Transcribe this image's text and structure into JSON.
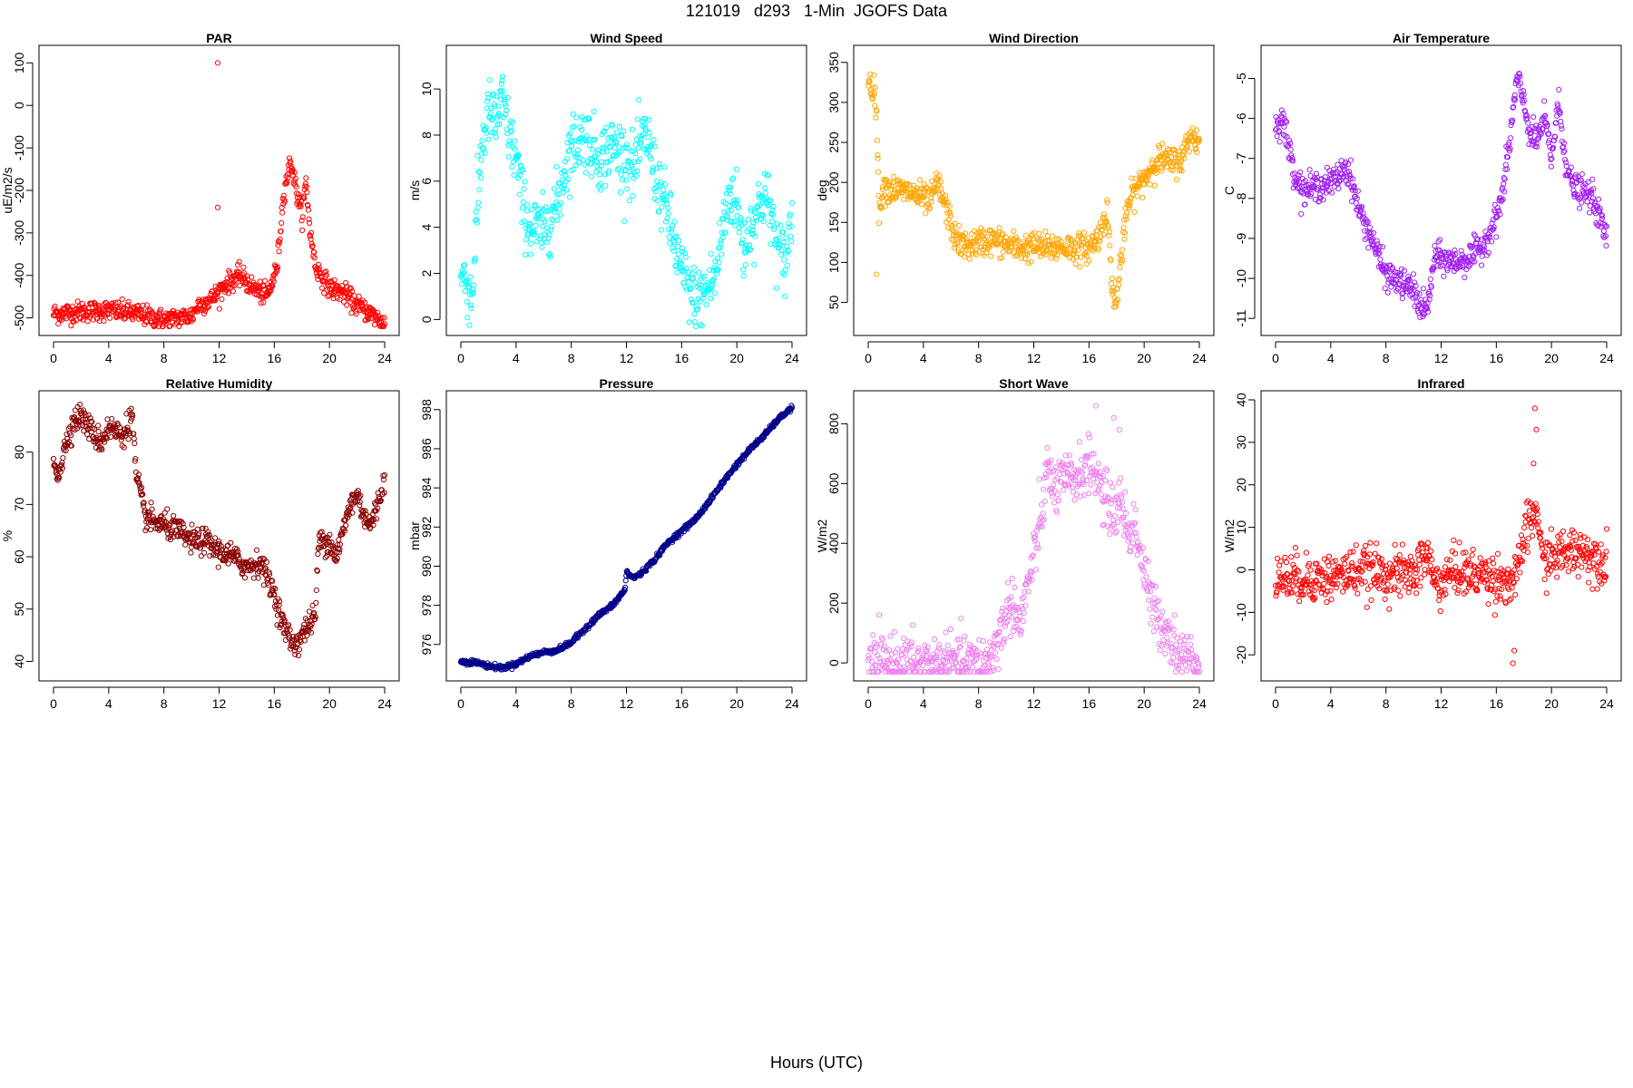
{
  "page": {
    "title": "121019   d293   1-Min  JGOFS Data",
    "xlabel": "Hours (UTC)"
  },
  "chart_data": [
    {
      "id": "par",
      "type": "scatter",
      "title": "PAR",
      "ylabel": "uE/m2/s",
      "color": "#ff0000",
      "xlim": [
        0,
        24
      ],
      "ylim": [
        -520,
        120
      ],
      "xticks": [
        0,
        4,
        8,
        12,
        16,
        20,
        24
      ],
      "yticks": [
        -500,
        -400,
        -300,
        -200,
        -100,
        0,
        100
      ],
      "keypoints": [
        [
          0,
          -490
        ],
        [
          2,
          -485
        ],
        [
          4,
          -482
        ],
        [
          6,
          -490
        ],
        [
          8,
          -505
        ],
        [
          10,
          -495
        ],
        [
          10.5,
          -470
        ],
        [
          11.5,
          -455
        ],
        [
          12.5,
          -420
        ],
        [
          13.5,
          -400
        ],
        [
          14.5,
          -430
        ],
        [
          15.5,
          -450
        ],
        [
          16.2,
          -380
        ],
        [
          16.7,
          -200
        ],
        [
          17.2,
          -130
        ],
        [
          17.6,
          -200
        ],
        [
          18,
          -260
        ],
        [
          18.3,
          -180
        ],
        [
          18.6,
          -300
        ],
        [
          19,
          -380
        ],
        [
          20,
          -430
        ],
        [
          21,
          -440
        ],
        [
          22,
          -470
        ],
        [
          23,
          -490
        ],
        [
          24,
          -515
        ]
      ],
      "noise": 12,
      "outliers": [
        [
          11.9,
          100
        ],
        [
          11.9,
          -240
        ]
      ]
    },
    {
      "id": "wind-speed",
      "type": "scatter",
      "title": "Wind Speed",
      "ylabel": "m/s",
      "color": "#00ffff",
      "xlim": [
        0,
        24
      ],
      "ylim": [
        -0.3,
        11.5
      ],
      "xticks": [
        0,
        4,
        8,
        12,
        16,
        20,
        24
      ],
      "yticks": [
        0,
        2,
        4,
        6,
        8,
        10
      ],
      "keypoints": [
        [
          0,
          2
        ],
        [
          0.5,
          1.5
        ],
        [
          0.8,
          0.8
        ],
        [
          1,
          3
        ],
        [
          1.5,
          7.5
        ],
        [
          2,
          9
        ],
        [
          2.5,
          8.5
        ],
        [
          3,
          9.5
        ],
        [
          3.5,
          8
        ],
        [
          4,
          7
        ],
        [
          4.5,
          5
        ],
        [
          5,
          4
        ],
        [
          6,
          3.8
        ],
        [
          6.5,
          4.5
        ],
        [
          7,
          5
        ],
        [
          7.5,
          6.5
        ],
        [
          8,
          7.5
        ],
        [
          9,
          8
        ],
        [
          10,
          7
        ],
        [
          11,
          7.5
        ],
        [
          12,
          7
        ],
        [
          12.5,
          6.5
        ],
        [
          13,
          7.5
        ],
        [
          13.5,
          8
        ],
        [
          14,
          6.5
        ],
        [
          15,
          4.5
        ],
        [
          16,
          2
        ],
        [
          17,
          0.8
        ],
        [
          17.5,
          1
        ],
        [
          18,
          1.5
        ],
        [
          18.5,
          2
        ],
        [
          19,
          4
        ],
        [
          19.5,
          5.5
        ],
        [
          20,
          5
        ],
        [
          20.5,
          3
        ],
        [
          21,
          4
        ],
        [
          22,
          5.5
        ],
        [
          22.5,
          4.5
        ],
        [
          23,
          3
        ],
        [
          23.5,
          2.5
        ],
        [
          24,
          4.5
        ]
      ],
      "noise": 0.7,
      "outliers": []
    },
    {
      "id": "wind-direction",
      "type": "scatter",
      "title": "Wind Direction",
      "ylabel": "deg",
      "color": "#ffa500",
      "xlim": [
        0,
        24
      ],
      "ylim": [
        20,
        360
      ],
      "xticks": [
        0,
        4,
        8,
        12,
        16,
        20,
        24
      ],
      "yticks": [
        50,
        100,
        150,
        200,
        250,
        300,
        350
      ],
      "keypoints": [
        [
          0,
          330
        ],
        [
          0.3,
          320
        ],
        [
          0.6,
          300
        ],
        [
          0.8,
          150
        ],
        [
          1,
          195
        ],
        [
          2,
          190
        ],
        [
          3,
          188
        ],
        [
          4,
          180
        ],
        [
          4.5,
          175
        ],
        [
          5,
          200
        ],
        [
          5.3,
          185
        ],
        [
          5.8,
          160
        ],
        [
          6.3,
          130
        ],
        [
          7,
          120
        ],
        [
          8,
          125
        ],
        [
          9,
          128
        ],
        [
          10,
          122
        ],
        [
          11,
          118
        ],
        [
          12,
          120
        ],
        [
          13,
          118
        ],
        [
          14,
          120
        ],
        [
          15,
          118
        ],
        [
          16,
          118
        ],
        [
          16.8,
          135
        ],
        [
          17.3,
          170
        ],
        [
          17.6,
          90
        ],
        [
          17.9,
          40
        ],
        [
          18.3,
          100
        ],
        [
          18.8,
          170
        ],
        [
          19.3,
          190
        ],
        [
          20,
          205
        ],
        [
          20.6,
          220
        ],
        [
          21,
          230
        ],
        [
          22,
          225
        ],
        [
          22.8,
          230
        ],
        [
          23.3,
          260
        ],
        [
          24,
          250
        ]
      ],
      "noise": 9,
      "outliers": [
        [
          0.6,
          85
        ],
        [
          0.7,
          230
        ]
      ]
    },
    {
      "id": "air-temperature",
      "type": "scatter",
      "title": "Air Temperature",
      "ylabel": "C",
      "color": "#a020f0",
      "xlim": [
        0,
        24
      ],
      "ylim": [
        -11.2,
        -4.4
      ],
      "xticks": [
        0,
        4,
        8,
        12,
        16,
        20,
        24
      ],
      "yticks": [
        -11,
        -10,
        -9,
        -8,
        -7,
        -6,
        -5
      ],
      "keypoints": [
        [
          0,
          -6.2
        ],
        [
          0.5,
          -6
        ],
        [
          1,
          -6.8
        ],
        [
          1.5,
          -7.5
        ],
        [
          2,
          -7.8
        ],
        [
          3,
          -7.7
        ],
        [
          4,
          -7.6
        ],
        [
          4.5,
          -7.5
        ],
        [
          5,
          -7.2
        ],
        [
          5.5,
          -7.5
        ],
        [
          5.8,
          -8
        ],
        [
          6.3,
          -8.5
        ],
        [
          7,
          -9
        ],
        [
          7.5,
          -9.5
        ],
        [
          8,
          -9.9
        ],
        [
          9,
          -10.1
        ],
        [
          10,
          -10.3
        ],
        [
          10.5,
          -10.7
        ],
        [
          11,
          -10.8
        ],
        [
          11.5,
          -9.5
        ],
        [
          12,
          -9.5
        ],
        [
          13,
          -9.6
        ],
        [
          14,
          -9.5
        ],
        [
          15,
          -9.2
        ],
        [
          16,
          -8.5
        ],
        [
          16.5,
          -7.8
        ],
        [
          17,
          -6.5
        ],
        [
          17.5,
          -5
        ],
        [
          18,
          -5.6
        ],
        [
          18.5,
          -6.5
        ],
        [
          19,
          -6.5
        ],
        [
          19.5,
          -6
        ],
        [
          20,
          -7
        ],
        [
          20.5,
          -5.6
        ],
        [
          21,
          -7
        ],
        [
          21.5,
          -7.7
        ],
        [
          22,
          -7.8
        ],
        [
          23,
          -8
        ],
        [
          23.5,
          -8.5
        ],
        [
          24,
          -9
        ]
      ],
      "noise": 0.18,
      "outliers": []
    },
    {
      "id": "relative-humidity",
      "type": "scatter",
      "title": "Relative Humidity",
      "ylabel": "%",
      "color": "#8b0000",
      "xlim": [
        0,
        24
      ],
      "ylim": [
        38,
        90
      ],
      "xticks": [
        0,
        4,
        8,
        12,
        16,
        20,
        24
      ],
      "yticks": [
        40,
        50,
        60,
        70,
        80
      ],
      "keypoints": [
        [
          0,
          78
        ],
        [
          0.3,
          76
        ],
        [
          0.6,
          78
        ],
        [
          1,
          83
        ],
        [
          1.5,
          86
        ],
        [
          2,
          87
        ],
        [
          2.5,
          85
        ],
        [
          3,
          83
        ],
        [
          3.5,
          82
        ],
        [
          4,
          85
        ],
        [
          4.5,
          84
        ],
        [
          5,
          83
        ],
        [
          5.5,
          86
        ],
        [
          5.7,
          87
        ],
        [
          6,
          75
        ],
        [
          6.3,
          72
        ],
        [
          6.6,
          68
        ],
        [
          7,
          67
        ],
        [
          8,
          66
        ],
        [
          9,
          65
        ],
        [
          10,
          63
        ],
        [
          11,
          63
        ],
        [
          12,
          61
        ],
        [
          13,
          60
        ],
        [
          14,
          58
        ],
        [
          15,
          59
        ],
        [
          15.5,
          56
        ],
        [
          16,
          53
        ],
        [
          16.5,
          48
        ],
        [
          17,
          45
        ],
        [
          17.5,
          43
        ],
        [
          18,
          45
        ],
        [
          18.5,
          47
        ],
        [
          19,
          49
        ],
        [
          19.2,
          63
        ],
        [
          20,
          63
        ],
        [
          20.5,
          60
        ],
        [
          21,
          65
        ],
        [
          21.5,
          70
        ],
        [
          22,
          72
        ],
        [
          22.5,
          68
        ],
        [
          23,
          66
        ],
        [
          23.5,
          70
        ],
        [
          24,
          75
        ]
      ],
      "noise": 1.2,
      "outliers": []
    },
    {
      "id": "pressure",
      "type": "scatter",
      "title": "Pressure",
      "ylabel": "mbar",
      "color": "#00008b",
      "xlim": [
        0,
        24
      ],
      "ylim": [
        974.6,
        988.5
      ],
      "xticks": [
        0,
        4,
        8,
        12,
        16,
        20,
        24
      ],
      "yticks": [
        976,
        978,
        980,
        982,
        984,
        986,
        988
      ],
      "keypoints": [
        [
          0,
          975.1
        ],
        [
          1,
          975.1
        ],
        [
          2,
          974.9
        ],
        [
          3,
          974.8
        ],
        [
          4,
          975
        ],
        [
          5,
          975.4
        ],
        [
          6,
          975.6
        ],
        [
          7,
          975.7
        ],
        [
          8,
          976.1
        ],
        [
          9,
          976.8
        ],
        [
          10,
          977.5
        ],
        [
          11,
          978
        ],
        [
          11.9,
          978.8
        ],
        [
          12,
          979.7
        ],
        [
          12.5,
          979.4
        ],
        [
          13,
          979.6
        ],
        [
          14,
          980.3
        ],
        [
          15,
          981.2
        ],
        [
          16,
          981.8
        ],
        [
          17,
          982.4
        ],
        [
          18,
          983.3
        ],
        [
          19,
          984.3
        ],
        [
          20,
          985.2
        ],
        [
          21,
          986
        ],
        [
          22,
          986.7
        ],
        [
          23,
          987.5
        ],
        [
          24,
          988.1
        ]
      ],
      "noise": 0.06,
      "outliers": []
    },
    {
      "id": "short-wave",
      "type": "scatter",
      "title": "Short Wave",
      "ylabel": "W/m2",
      "color": "#ee82ee",
      "xlim": [
        0,
        24
      ],
      "ylim": [
        -30,
        880
      ],
      "xticks": [
        0,
        4,
        8,
        12,
        16,
        20,
        24
      ],
      "yticks": [
        0,
        200,
        400,
        600,
        800
      ],
      "keypoints": [
        [
          0,
          0
        ],
        [
          8,
          0
        ],
        [
          8.6,
          5
        ],
        [
          9,
          30
        ],
        [
          9.5,
          90
        ],
        [
          10,
          160
        ],
        [
          10.5,
          210
        ],
        [
          11,
          120
        ],
        [
          11.5,
          250
        ],
        [
          12,
          350
        ],
        [
          12.5,
          480
        ],
        [
          13,
          650
        ],
        [
          13.5,
          580
        ],
        [
          14,
          600
        ],
        [
          15,
          620
        ],
        [
          16,
          660
        ],
        [
          16.5,
          640
        ],
        [
          17,
          560
        ],
        [
          17.5,
          520
        ],
        [
          18,
          500
        ],
        [
          18.3,
          560
        ],
        [
          18.8,
          420
        ],
        [
          19.3,
          470
        ],
        [
          20,
          300
        ],
        [
          20.5,
          200
        ],
        [
          21,
          150
        ],
        [
          21.5,
          120
        ],
        [
          22,
          80
        ],
        [
          22.5,
          30
        ],
        [
          23,
          20
        ],
        [
          24,
          0
        ]
      ],
      "noise": 45,
      "outliers": [
        [
          16.5,
          860
        ],
        [
          17.8,
          820
        ],
        [
          18.2,
          780
        ]
      ]
    },
    {
      "id": "infrared",
      "type": "scatter",
      "title": "Infrared",
      "ylabel": "W/m2",
      "color": "#ff0000",
      "xlim": [
        0,
        24
      ],
      "ylim": [
        -24,
        40
      ],
      "xticks": [
        0,
        4,
        8,
        12,
        16,
        20,
        24
      ],
      "yticks": [
        -20,
        -10,
        0,
        10,
        20,
        30,
        40
      ],
      "keypoints": [
        [
          0,
          -2
        ],
        [
          2,
          -2
        ],
        [
          4,
          -2
        ],
        [
          5,
          -1
        ],
        [
          6,
          0
        ],
        [
          8,
          -1
        ],
        [
          10,
          -1
        ],
        [
          10.6,
          2
        ],
        [
          11,
          4
        ],
        [
          11.5,
          -3
        ],
        [
          12,
          -3
        ],
        [
          13,
          0
        ],
        [
          14,
          -1
        ],
        [
          15,
          -1
        ],
        [
          16,
          -2
        ],
        [
          17,
          -3
        ],
        [
          17.5,
          -2
        ],
        [
          18,
          8
        ],
        [
          18.6,
          12
        ],
        [
          19,
          14
        ],
        [
          19.3,
          2
        ],
        [
          20,
          3
        ],
        [
          21,
          4
        ],
        [
          22,
          5
        ],
        [
          23,
          3
        ],
        [
          24,
          2
        ]
      ],
      "noise": 2.8,
      "outliers": [
        [
          18.8,
          38
        ],
        [
          18.9,
          33
        ],
        [
          18.7,
          25
        ],
        [
          17.2,
          -22
        ],
        [
          17.3,
          -19
        ]
      ]
    }
  ]
}
